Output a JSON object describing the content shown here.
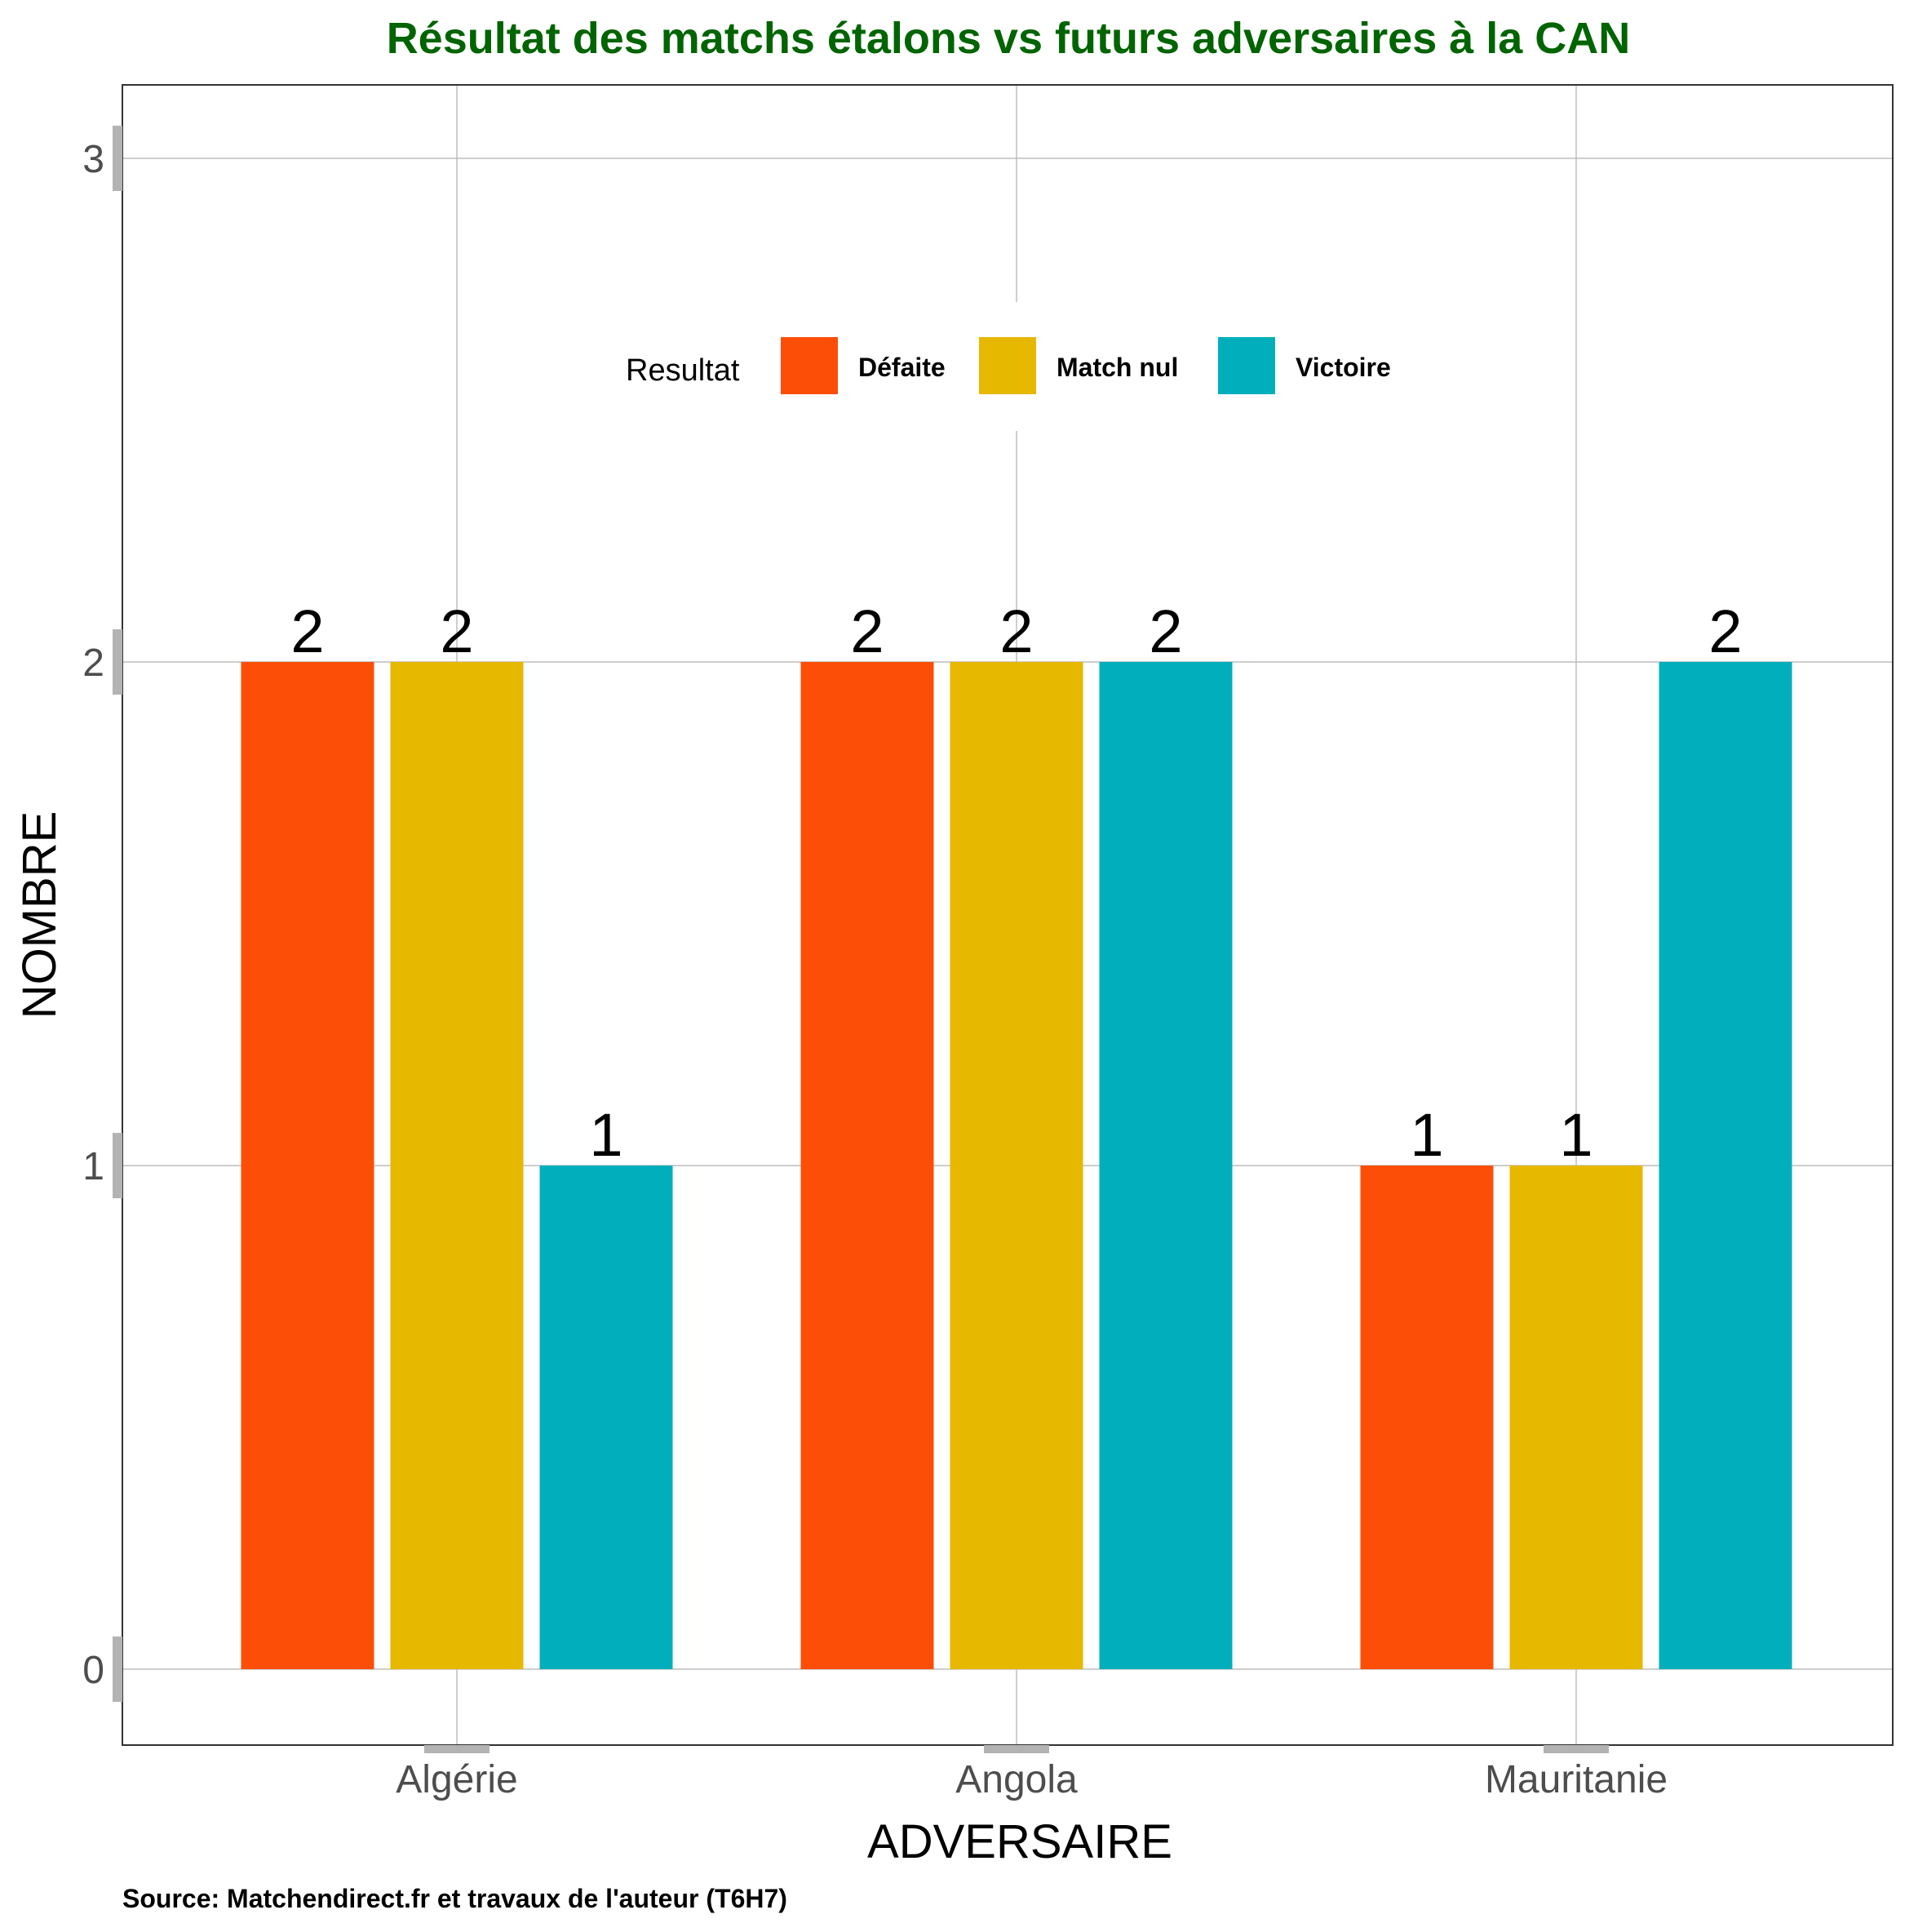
{
  "chart_data": {
    "type": "bar",
    "title": "Résultat des matchs étalons vs futurs adversaires à la CAN",
    "xlabel": "ADVERSAIRE",
    "ylabel": "NOMBRE",
    "caption": "Source: Matchendirect.fr et travaux de l'auteur (T6H7)",
    "categories": [
      "Algérie",
      "Angola",
      "Mauritanie"
    ],
    "series": [
      {
        "name": "Défaite",
        "values": [
          2,
          2,
          1
        ]
      },
      {
        "name": "Match nul",
        "values": [
          2,
          2,
          1
        ]
      },
      {
        "name": "Victoire",
        "values": [
          1,
          2,
          2
        ]
      }
    ],
    "ylim": [
      0,
      3
    ],
    "yticks": [
      "0",
      "1",
      "2",
      "3"
    ],
    "grid": true,
    "legend": {
      "title": "Resultat",
      "placement": "top-center, inside plot"
    },
    "colors": {
      "series": [
        "#FC4E07",
        "#E7B800",
        "#00AFBB"
      ],
      "title": "#006400",
      "grid": "#bdbdbd",
      "panel_border": "#333333",
      "tick_mark": "#b3b3b3"
    }
  }
}
